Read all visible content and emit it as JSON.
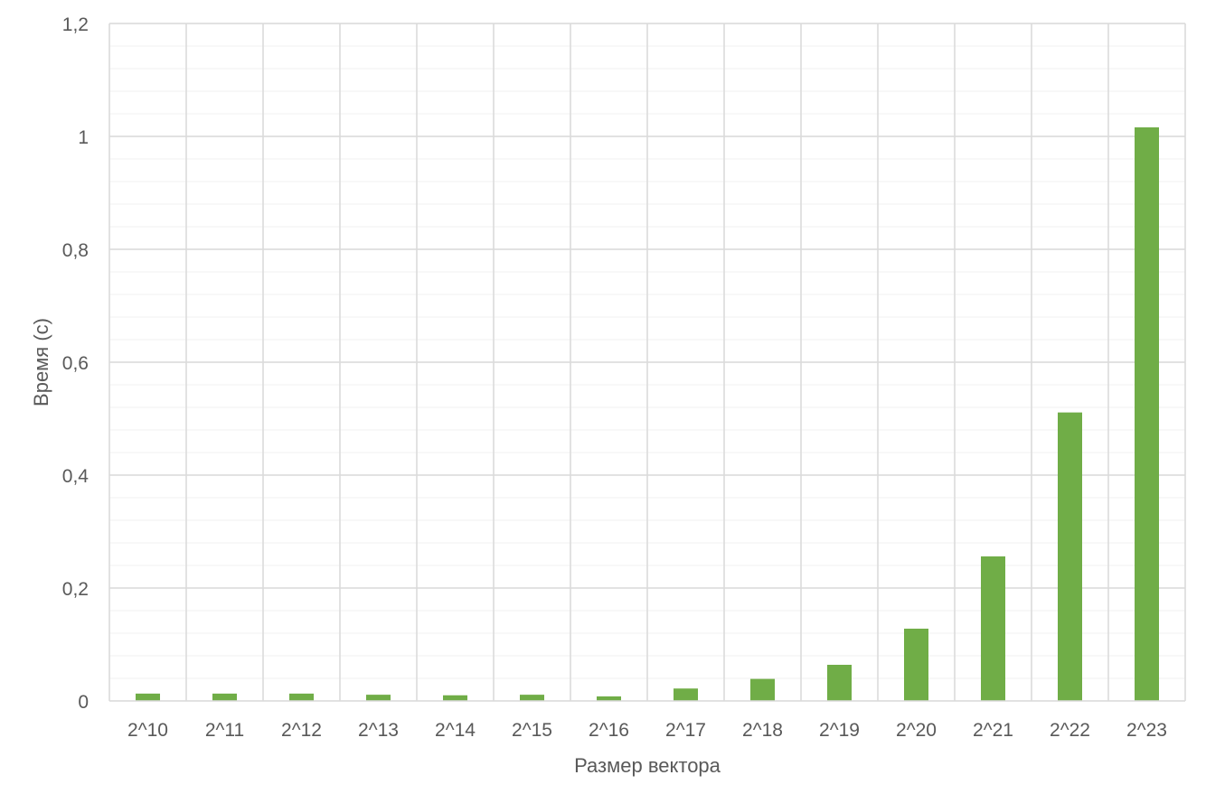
{
  "chart_data": {
    "type": "bar",
    "title": "",
    "xlabel": "Размер вектора",
    "ylabel": "Время (с)",
    "categories": [
      "2^10",
      "2^11",
      "2^12",
      "2^13",
      "2^14",
      "2^15",
      "2^16",
      "2^17",
      "2^18",
      "2^19",
      "2^20",
      "2^21",
      "2^22",
      "2^23"
    ],
    "series": [
      {
        "values": [
          0.013,
          0.013,
          0.013,
          0.011,
          0.01,
          0.011,
          0.008,
          0.022,
          0.039,
          0.064,
          0.128,
          0.256,
          0.511,
          1.016
        ]
      }
    ],
    "ylim": [
      0,
      1.2
    ],
    "yticks": [
      0,
      0.2,
      0.4,
      0.6,
      0.8,
      1.0,
      1.2
    ],
    "ytick_labels": [
      "0",
      "0,2",
      "0,4",
      "0,6",
      "0,8",
      "1",
      "1,2"
    ],
    "y_minor_step": 0.04,
    "grid": true,
    "legend": "none",
    "bar_color": "#70AD47"
  }
}
